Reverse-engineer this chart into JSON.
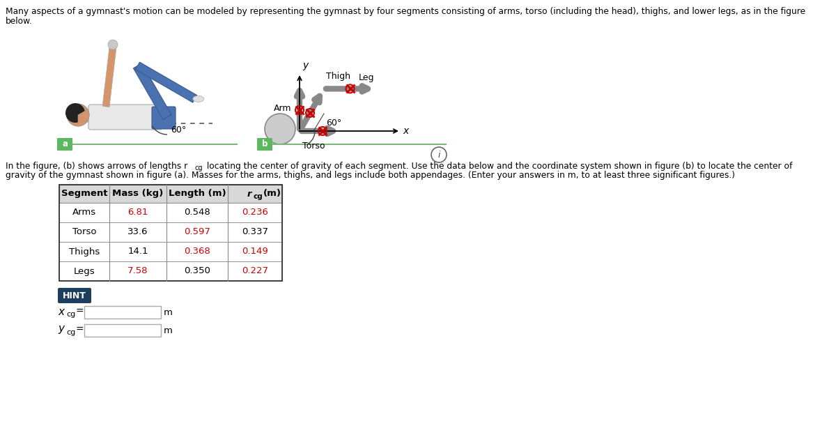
{
  "title_line1": "Many aspects of a gymnast's motion can be modeled by representing the gymnast by four segments consisting of arms, torso (including the head), thighs, and lower legs, as in the figure",
  "title_line2": "below.",
  "desc_line1_pre": "In the figure, (b) shows arrows of lengths r",
  "desc_line1_sub": "cg",
  "desc_line1_post": " locating the center of gravity of each segment. Use the data below and the coordinate system shown in figure (b) to locate the center of",
  "desc_line2": "gravity of the gymnast shown in figure (a). Masses for the arms, thighs, and legs include both appendages. (Enter your answers in m, to at least three significant figures.)",
  "table_headers": [
    "Segment",
    "Mass (kg)",
    "Length (m)",
    "r_cg (m)"
  ],
  "table_rows": [
    [
      "Arms",
      "6.81",
      "0.548",
      "0.236"
    ],
    [
      "Torso",
      "33.6",
      "0.597",
      "0.337"
    ],
    [
      "Thighs",
      "14.1",
      "0.368",
      "0.149"
    ],
    [
      "Legs",
      "7.58",
      "0.350",
      "0.227"
    ]
  ],
  "red_cells": {
    "Arms": [
      1,
      3
    ],
    "Torso": [
      2
    ],
    "Thighs": [
      2,
      3
    ],
    "Legs": [
      1,
      3
    ]
  },
  "hint_bg": "#1d3f5e",
  "hint_text_color": "#ffffff",
  "label_bg": "#5cb85c",
  "figure_bg": "#ffffff",
  "text_color": "#000000",
  "red_color": "#cc0000",
  "gray_color": "#aaaaaa",
  "table_header_bg": "#d8d8d8",
  "table_border": "#888888",
  "gymnast_skin": "#d4956a",
  "gymnast_blue": "#4a72b0",
  "gymnast_white": "#e8e8e8",
  "gymnast_hair": "#222222",
  "diagram_gray": "#b0b0b0"
}
